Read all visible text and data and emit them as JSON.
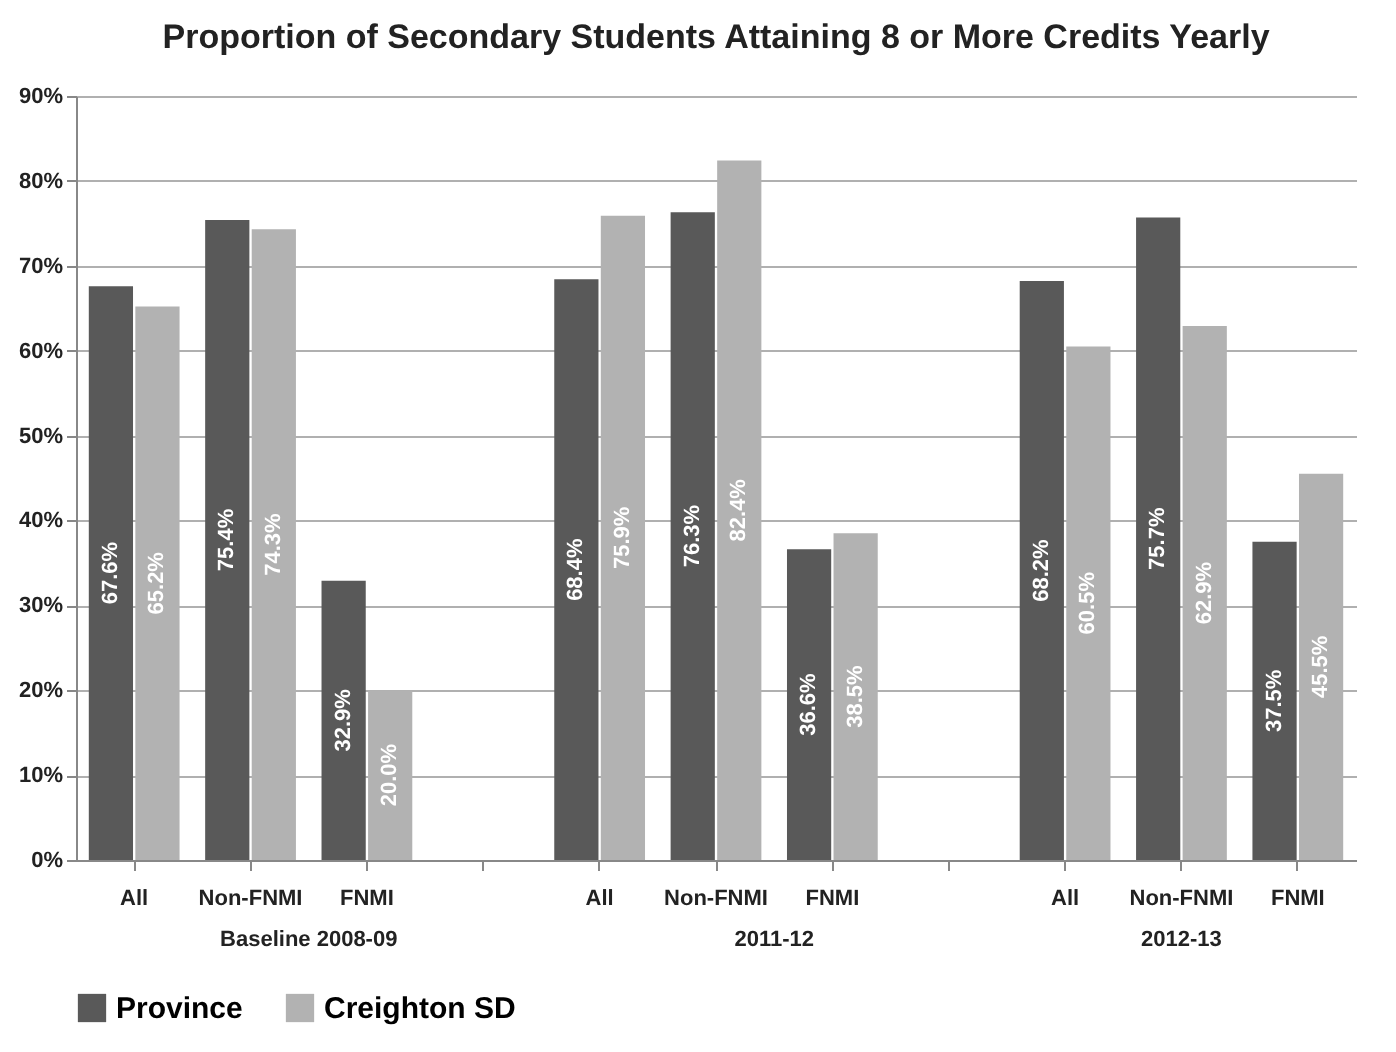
{
  "chart_data": {
    "type": "bar",
    "title": "Proportion of Secondary Students Attaining 8 or More Credits Yearly",
    "categories": [
      "All",
      "Non-FNMI",
      "FNMI",
      null,
      "All",
      "Non-FNMI",
      "FNMI",
      null,
      "All",
      "Non-FNMI",
      "FNMI"
    ],
    "annotations": [
      "Baseline 2008-09",
      "2011-12",
      "2012-13"
    ],
    "series": [
      {
        "name": "Province",
        "color": "#595959",
        "values": [
          67.6,
          75.4,
          32.9,
          null,
          68.4,
          76.3,
          36.6,
          null,
          68.2,
          75.7,
          37.5
        ],
        "value_labels": [
          "67.6%",
          "75.4%",
          "32.9%",
          null,
          "68.4%",
          "76.3%",
          "36.6%",
          null,
          "68.2%",
          "75.7%",
          "37.5%"
        ]
      },
      {
        "name": "Creighton SD",
        "color": "#b2b2b2",
        "values": [
          65.2,
          74.3,
          20.0,
          null,
          75.9,
          82.4,
          38.5,
          null,
          60.5,
          62.9,
          45.5
        ],
        "value_labels": [
          "65.2%",
          "74.3%",
          "20.0%",
          null,
          "75.9%",
          "82.4%",
          "38.5%",
          null,
          "60.5%",
          "62.9%",
          "45.5%"
        ]
      }
    ],
    "ylim": [
      0,
      90
    ],
    "yticks": [
      {
        "value": 0,
        "label": "0%"
      },
      {
        "value": 10,
        "label": "10%"
      },
      {
        "value": 20,
        "label": "20%"
      },
      {
        "value": 30,
        "label": "30%"
      },
      {
        "value": 40,
        "label": "40%"
      },
      {
        "value": 50,
        "label": "50%"
      },
      {
        "value": 60,
        "label": "60%"
      },
      {
        "value": 70,
        "label": "70%"
      },
      {
        "value": 80,
        "label": "80%"
      },
      {
        "value": 90,
        "label": "90%"
      }
    ],
    "grid": "y",
    "legend": "bottom"
  }
}
